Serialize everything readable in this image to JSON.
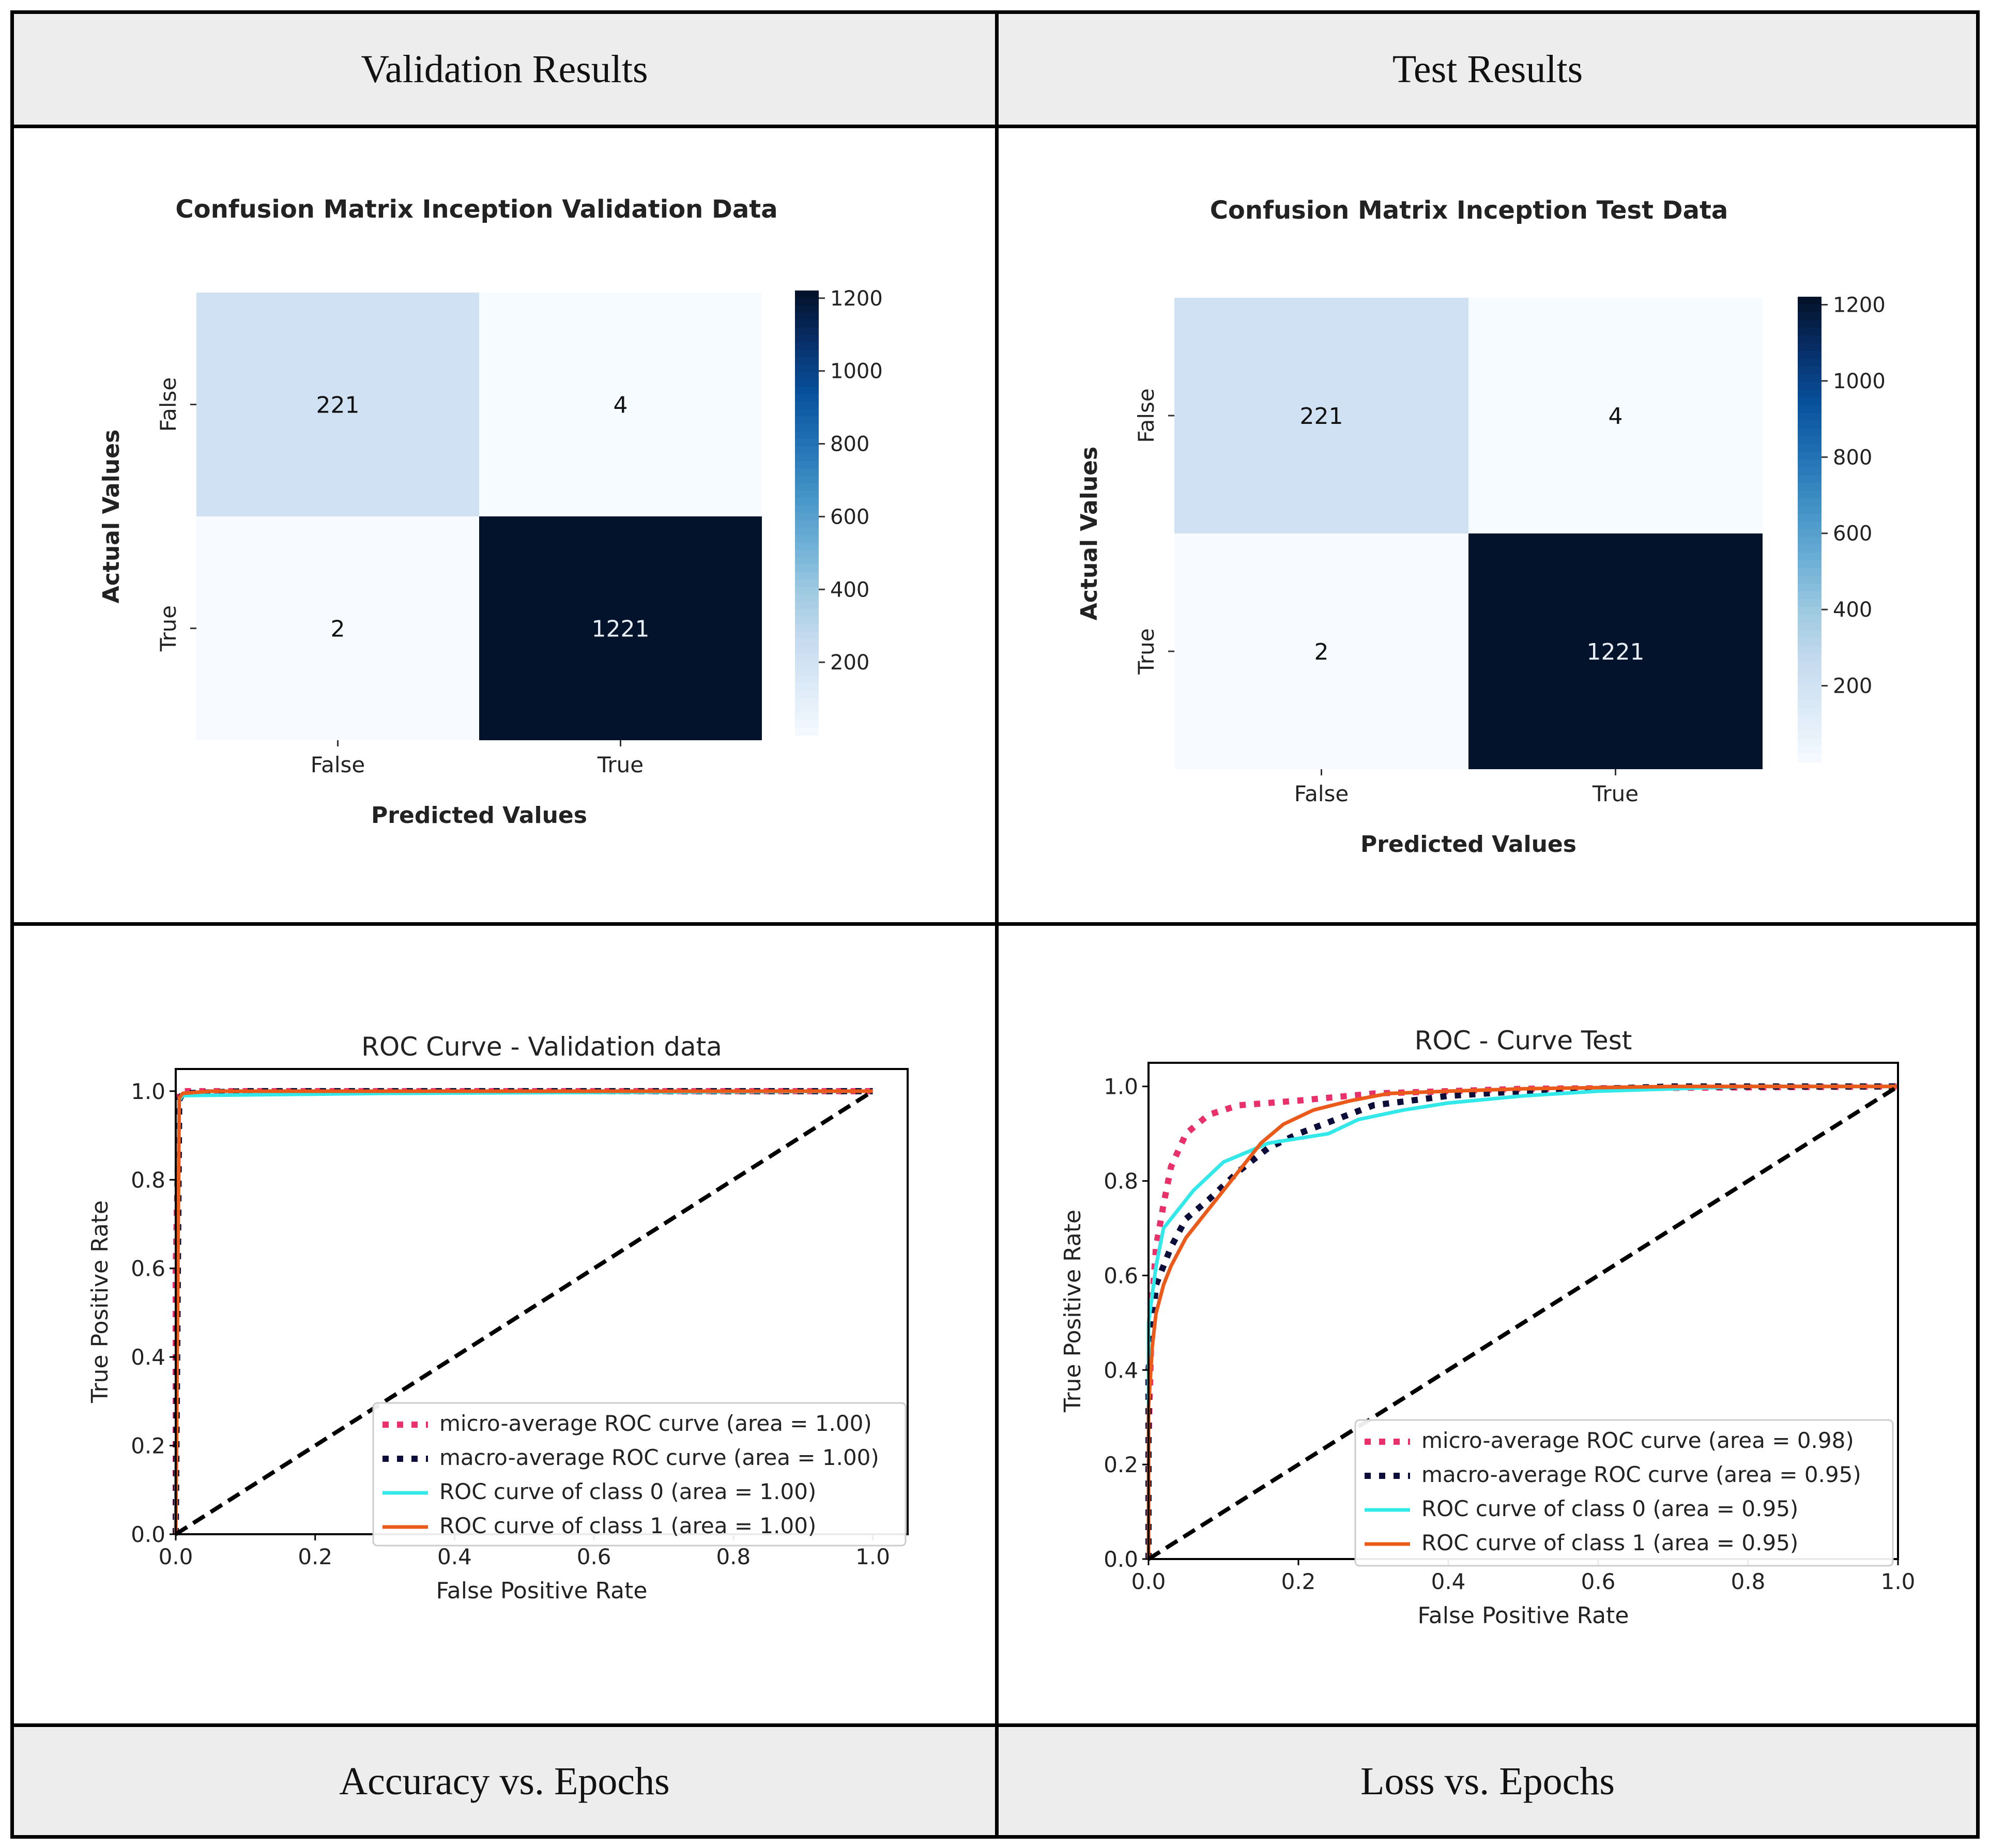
{
  "table": {
    "header_left": "Validation Results",
    "header_right": "Test Results",
    "footer_left": "Accuracy vs. Epochs",
    "footer_right": "Loss vs. Epochs"
  },
  "chart_data": [
    {
      "id": "cm_val",
      "type": "heatmap",
      "title": "Confusion Matrix Inception Validation Data",
      "xlabel": "Predicted Values",
      "ylabel": "Actual Values",
      "x_categories": [
        "False",
        "True"
      ],
      "y_categories": [
        "False",
        "True"
      ],
      "matrix": [
        [
          221,
          4
        ],
        [
          2,
          1221
        ]
      ],
      "colorbar": {
        "range": [
          0,
          1221
        ],
        "ticks": [
          200,
          400,
          600,
          800,
          1000,
          1200
        ]
      }
    },
    {
      "id": "cm_test",
      "type": "heatmap",
      "title": "Confusion Matrix Inception Test Data",
      "xlabel": "Predicted Values",
      "ylabel": "Actual Values",
      "x_categories": [
        "False",
        "True"
      ],
      "y_categories": [
        "False",
        "True"
      ],
      "matrix": [
        [
          221,
          4
        ],
        [
          2,
          1221
        ]
      ],
      "colorbar": {
        "range": [
          0,
          1221
        ],
        "ticks": [
          200,
          400,
          600,
          800,
          1000,
          1200
        ]
      }
    },
    {
      "id": "roc_val",
      "type": "line",
      "title": "ROC Curve - Validation data",
      "xlabel": "False Positive Rate",
      "ylabel": "True Positive Rate",
      "xlim": [
        0,
        1.05
      ],
      "ylim": [
        0,
        1.05
      ],
      "xticks": [
        "0.0",
        "0.2",
        "0.4",
        "0.6",
        "0.8",
        "1.0"
      ],
      "yticks": [
        "0.0",
        "0.2",
        "0.4",
        "0.6",
        "0.8",
        "1.0"
      ],
      "legend_position": "lower-right",
      "series": [
        {
          "name": "micro-average ROC curve (area = 1.00)",
          "color": "#e8306a",
          "style": "dotted",
          "x": [
            0,
            0,
            0.005,
            0.02,
            1.0
          ],
          "y": [
            0,
            0.6,
            1.0,
            1.0,
            1.0
          ]
        },
        {
          "name": "macro-average ROC curve (area = 1.00)",
          "color": "#0d0d3a",
          "style": "dotted",
          "x": [
            0,
            0.005,
            0.01,
            0.1,
            1.0
          ],
          "y": [
            0,
            0.98,
            0.995,
            1.0,
            1.0
          ]
        },
        {
          "name": "ROC curve of class 0 (area = 1.00)",
          "color": "#33e8e8",
          "style": "solid",
          "x": [
            0,
            0.005,
            0.01,
            0.3,
            1.0
          ],
          "y": [
            0,
            0.98,
            0.99,
            0.995,
            1.0
          ]
        },
        {
          "name": "ROC curve of class 1 (area = 1.00)",
          "color": "#ea5a1a",
          "style": "solid",
          "x": [
            0,
            0.005,
            0.01,
            0.05,
            1.0
          ],
          "y": [
            0,
            0.985,
            0.995,
            1.0,
            1.0
          ]
        },
        {
          "name": "chance",
          "color": "#000000",
          "style": "dashed",
          "legend": false,
          "x": [
            0,
            1
          ],
          "y": [
            0,
            1
          ]
        }
      ]
    },
    {
      "id": "roc_test",
      "type": "line",
      "title": "ROC - Curve Test",
      "xlabel": "False Positive Rate",
      "ylabel": "True Positive Rate",
      "xlim": [
        0,
        1.0
      ],
      "ylim": [
        0,
        1.05
      ],
      "xticks": [
        "0.0",
        "0.2",
        "0.4",
        "0.6",
        "0.8",
        "1.0"
      ],
      "yticks": [
        "0.0",
        "0.2",
        "0.4",
        "0.6",
        "0.8",
        "1.0"
      ],
      "legend_position": "lower-right",
      "series": [
        {
          "name": "micro-average ROC curve (area = 0.98)",
          "color": "#e8306a",
          "style": "dotted",
          "x": [
            0,
            0,
            0.005,
            0.01,
            0.02,
            0.03,
            0.05,
            0.08,
            0.12,
            0.2,
            0.3,
            0.5,
            1.0
          ],
          "y": [
            0,
            0.25,
            0.55,
            0.66,
            0.75,
            0.83,
            0.9,
            0.94,
            0.96,
            0.97,
            0.985,
            0.995,
            1.0
          ]
        },
        {
          "name": "macro-average ROC curve (area = 0.95)",
          "color": "#0d0d3a",
          "style": "dotted",
          "x": [
            0,
            0,
            0.01,
            0.03,
            0.05,
            0.08,
            0.12,
            0.16,
            0.2,
            0.25,
            0.3,
            0.4,
            0.5,
            0.7,
            1.0
          ],
          "y": [
            0,
            0.4,
            0.58,
            0.66,
            0.72,
            0.76,
            0.82,
            0.87,
            0.9,
            0.93,
            0.96,
            0.98,
            0.99,
            1.0,
            1.0
          ]
        },
        {
          "name": "ROC curve of class 0 (area = 0.95)",
          "color": "#33e8e8",
          "style": "solid",
          "x": [
            0,
            0,
            0.01,
            0.02,
            0.04,
            0.06,
            0.08,
            0.1,
            0.13,
            0.16,
            0.2,
            0.24,
            0.28,
            0.34,
            0.4,
            0.5,
            0.6,
            0.8,
            1.0
          ],
          "y": [
            0,
            0.5,
            0.62,
            0.7,
            0.74,
            0.78,
            0.81,
            0.84,
            0.86,
            0.88,
            0.89,
            0.9,
            0.93,
            0.95,
            0.965,
            0.98,
            0.99,
            1.0,
            1.0
          ]
        },
        {
          "name": "ROC curve of class 1 (area = 0.95)",
          "color": "#ea5a1a",
          "style": "solid",
          "x": [
            0,
            0,
            0.005,
            0.01,
            0.02,
            0.03,
            0.05,
            0.07,
            0.09,
            0.12,
            0.15,
            0.18,
            0.22,
            0.27,
            0.32,
            0.4,
            0.5,
            0.7,
            1.0
          ],
          "y": [
            0,
            0.32,
            0.45,
            0.52,
            0.58,
            0.62,
            0.68,
            0.72,
            0.76,
            0.82,
            0.88,
            0.92,
            0.95,
            0.97,
            0.985,
            0.99,
            0.995,
            1.0,
            1.0
          ]
        },
        {
          "name": "chance",
          "color": "#000000",
          "style": "dashed",
          "legend": false,
          "x": [
            0,
            1
          ],
          "y": [
            0,
            1
          ]
        }
      ]
    }
  ]
}
